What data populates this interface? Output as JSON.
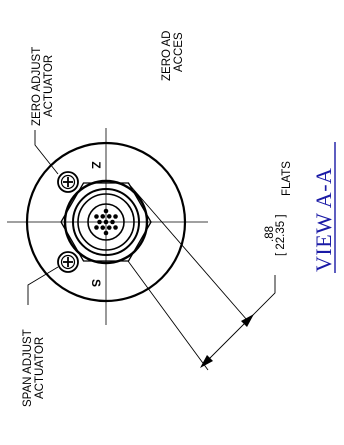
{
  "labels": {
    "zero_actuator_line1": "ZERO ADJUST",
    "zero_actuator_line2": "ACTUATOR",
    "zero_access_line1": "ZERO AD",
    "zero_access_line2": "ACCES",
    "span_actuator_line1": "SPAN ADJUST",
    "span_actuator_line2": "ACTUATOR",
    "zero_mark": "Z",
    "span_mark": "S"
  },
  "dimension": {
    "inches": ".88",
    "mm": "[ 22.35 ]",
    "note": "FLATS"
  },
  "view_title": "VIEW A-A",
  "colors": {
    "line": "#000000",
    "view_title": "#1a1aa6"
  }
}
